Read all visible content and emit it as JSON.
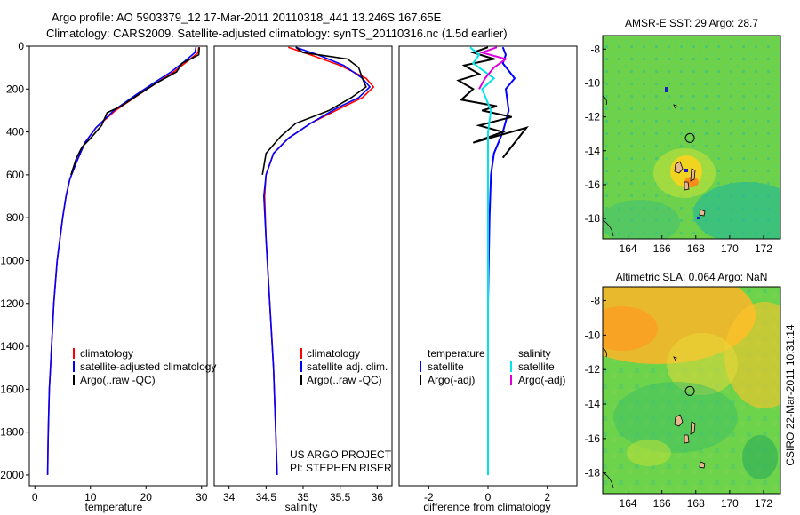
{
  "title": {
    "line1": "Argo profile: AO 5903379_12 17-Mar-2011 20110318_441 13.246S 167.65E",
    "line2": "Climatology: CARS2009. Satellite-adjusted climatology: synTS_20110316.nc (1.5d earlier)"
  },
  "side_label": "CSIRO 22-Mar-2011 10:31:14",
  "colors": {
    "climatology": "#ff0000",
    "satellite": "#0000ff",
    "argo": "#000000",
    "sal_satellite": "#00e5e5",
    "sal_argo": "#dd00dd"
  },
  "chart_data": [
    {
      "type": "line",
      "id": "temperature",
      "xlabel": "temperature",
      "xlim": [
        -1,
        31
      ],
      "ylim": [
        2050,
        0
      ],
      "xticks": [
        0,
        10,
        20,
        30
      ],
      "yticks": [
        0,
        200,
        400,
        600,
        800,
        1000,
        1200,
        1400,
        1600,
        1800,
        2000
      ],
      "legend": [
        "climatology",
        "satellite-adjusted climatology",
        "Argo(..raw -QC)"
      ],
      "series": [
        {
          "name": "climatology",
          "color": "#ff0000",
          "points": [
            [
              29.5,
              5
            ],
            [
              29.4,
              30
            ],
            [
              27.5,
              70
            ],
            [
              25,
              120
            ],
            [
              22,
              170
            ],
            [
              18.5,
              230
            ],
            [
              14.5,
              300
            ],
            [
              11,
              380
            ],
            [
              9,
              450
            ],
            [
              7.5,
              540
            ],
            [
              6.3,
              620
            ],
            [
              5.6,
              700
            ],
            [
              5,
              800
            ],
            [
              4.5,
              900
            ],
            [
              4,
              1000
            ],
            [
              3.7,
              1100
            ],
            [
              3.4,
              1200
            ],
            [
              3.2,
              1300
            ],
            [
              3,
              1400
            ],
            [
              2.8,
              1500
            ],
            [
              2.6,
              1600
            ],
            [
              2.5,
              1700
            ],
            [
              2.4,
              1800
            ],
            [
              2.35,
              1900
            ],
            [
              2.3,
              2000
            ]
          ]
        },
        {
          "name": "satellite-adjusted climatology",
          "color": "#0000ff",
          "points": [
            [
              29,
              5
            ],
            [
              28.8,
              30
            ],
            [
              27,
              70
            ],
            [
              24.5,
              120
            ],
            [
              21.5,
              170
            ],
            [
              18,
              230
            ],
            [
              14.2,
              300
            ],
            [
              11,
              380
            ],
            [
              9,
              450
            ],
            [
              7.5,
              540
            ],
            [
              6.3,
              620
            ],
            [
              5.6,
              700
            ],
            [
              5,
              800
            ],
            [
              4.5,
              900
            ],
            [
              4,
              1000
            ],
            [
              3.7,
              1100
            ],
            [
              3.4,
              1200
            ],
            [
              3.2,
              1300
            ],
            [
              3,
              1400
            ],
            [
              2.8,
              1500
            ],
            [
              2.6,
              1600
            ],
            [
              2.5,
              1700
            ],
            [
              2.4,
              1800
            ],
            [
              2.35,
              1900
            ],
            [
              2.3,
              2000
            ]
          ]
        },
        {
          "name": "Argo(..raw -QC)",
          "color": "#000000",
          "points": [
            [
              29.6,
              5
            ],
            [
              29.5,
              40
            ],
            [
              26.5,
              80
            ],
            [
              25.5,
              120
            ],
            [
              22,
              170
            ],
            [
              19,
              220
            ],
            [
              15.5,
              280
            ],
            [
              13,
              310
            ],
            [
              12,
              370
            ],
            [
              10,
              430
            ],
            [
              8.5,
              470
            ],
            [
              7.5,
              520
            ],
            [
              6.5,
              600
            ]
          ]
        }
      ]
    },
    {
      "type": "line",
      "id": "salinity",
      "xlabel": "salinity",
      "xlim": [
        33.8,
        36.2
      ],
      "ylim": [
        2050,
        0
      ],
      "xticks": [
        34,
        34.5,
        35,
        35.5,
        36
      ],
      "legend": [
        "climatology",
        "satellite adj. clim.",
        "Argo(..raw -QC)"
      ],
      "annotation": [
        "US ARGO PROJECT",
        "PI: STEPHEN RISER"
      ],
      "series": [
        {
          "name": "climatology",
          "color": "#ff0000",
          "points": [
            [
              34.8,
              5
            ],
            [
              35.1,
              40
            ],
            [
              35.5,
              90
            ],
            [
              35.85,
              150
            ],
            [
              35.95,
              190
            ],
            [
              35.8,
              240
            ],
            [
              35.5,
              290
            ],
            [
              35.1,
              360
            ],
            [
              34.8,
              430
            ],
            [
              34.6,
              500
            ],
            [
              34.5,
              600
            ],
            [
              34.48,
              700
            ],
            [
              34.5,
              900
            ],
            [
              34.55,
              1200
            ],
            [
              34.6,
              1500
            ],
            [
              34.63,
              1800
            ],
            [
              34.65,
              2000
            ]
          ]
        },
        {
          "name": "satellite adj. clim.",
          "color": "#0000ff",
          "points": [
            [
              34.9,
              5
            ],
            [
              35.2,
              40
            ],
            [
              35.55,
              90
            ],
            [
              35.8,
              150
            ],
            [
              35.9,
              190
            ],
            [
              35.75,
              240
            ],
            [
              35.45,
              290
            ],
            [
              35.1,
              360
            ],
            [
              34.8,
              430
            ],
            [
              34.6,
              500
            ],
            [
              34.5,
              600
            ],
            [
              34.47,
              700
            ],
            [
              34.5,
              900
            ],
            [
              34.55,
              1200
            ],
            [
              34.6,
              1500
            ],
            [
              34.63,
              1800
            ],
            [
              34.65,
              2000
            ]
          ]
        },
        {
          "name": "Argo(..raw -QC)",
          "color": "#000000",
          "points": [
            [
              34.9,
              5
            ],
            [
              35,
              30
            ],
            [
              35.6,
              60
            ],
            [
              35.75,
              100
            ],
            [
              35.8,
              150
            ],
            [
              35.85,
              190
            ],
            [
              35.65,
              240
            ],
            [
              35.35,
              300
            ],
            [
              34.9,
              360
            ],
            [
              34.7,
              420
            ],
            [
              34.5,
              500
            ],
            [
              34.45,
              600
            ]
          ]
        }
      ]
    },
    {
      "type": "line",
      "id": "difference",
      "xlabel": "difference from climatology",
      "xlim": [
        -3,
        3
      ],
      "ylim": [
        2050,
        0
      ],
      "xticks": [
        -2,
        0,
        2
      ],
      "legend_headers": [
        "temperature",
        "salinity"
      ],
      "legend": [
        "satellite",
        "Argo(-adj)",
        "satellite",
        "Argo(-adj)"
      ],
      "series": [
        {
          "name": "temperature satellite",
          "color": "#0000ff",
          "points": [
            [
              0.5,
              5
            ],
            [
              0.6,
              40
            ],
            [
              0.5,
              80
            ],
            [
              0.9,
              150
            ],
            [
              0.6,
              200
            ],
            [
              0.7,
              300
            ],
            [
              0.5,
              400
            ],
            [
              0.2,
              500
            ],
            [
              0.1,
              600
            ],
            [
              0.05,
              800
            ],
            [
              0,
              1200
            ],
            [
              0,
              1600
            ],
            [
              0,
              2000
            ]
          ]
        },
        {
          "name": "temperature Argo(-adj)",
          "color": "#000000",
          "points": [
            [
              0,
              5
            ],
            [
              -0.5,
              30
            ],
            [
              0.2,
              60
            ],
            [
              -0.8,
              90
            ],
            [
              -0.3,
              130
            ],
            [
              -1,
              160
            ],
            [
              -0.5,
              200
            ],
            [
              -0.9,
              250
            ],
            [
              0.3,
              280
            ],
            [
              -0.2,
              300
            ],
            [
              0.8,
              330
            ],
            [
              -0.3,
              370
            ],
            [
              0.5,
              400
            ],
            [
              -0.5,
              450
            ],
            [
              1.3,
              380
            ],
            [
              0.5,
              520
            ]
          ]
        },
        {
          "name": "salinity satellite",
          "color": "#00e5e5",
          "points": [
            [
              -0.6,
              5
            ],
            [
              -0.3,
              40
            ],
            [
              -0.5,
              80
            ],
            [
              0.2,
              150
            ],
            [
              -0.2,
              200
            ],
            [
              0.1,
              300
            ],
            [
              0,
              400
            ],
            [
              0,
              600
            ],
            [
              0,
              800
            ],
            [
              0,
              1200
            ],
            [
              0,
              1600
            ],
            [
              0,
              2000
            ]
          ]
        },
        {
          "name": "salinity Argo(-adj)",
          "color": "#dd00dd",
          "points": [
            [
              0.3,
              5
            ],
            [
              -0.2,
              30
            ],
            [
              0.6,
              60
            ],
            [
              0.2,
              100
            ],
            [
              -0.1,
              150
            ],
            [
              -0.3,
              200
            ]
          ]
        }
      ]
    },
    {
      "type": "heatmap",
      "id": "sst-map",
      "title": "AMSR-E SST: 29 Argo: 28.7",
      "xlim": [
        162.5,
        173
      ],
      "ylim": [
        -19.2,
        -7.2
      ],
      "xticks": [
        164,
        166,
        168,
        170,
        172
      ],
      "yticks": [
        -8,
        -10,
        -12,
        -14,
        -16,
        -18
      ],
      "marker": [
        167.65,
        -13.246
      ]
    },
    {
      "type": "heatmap",
      "id": "sla-map",
      "title": "Altimetric SLA: 0.064 Argo: NaN",
      "xlim": [
        162.5,
        173
      ],
      "ylim": [
        -19.2,
        -7.2
      ],
      "xticks": [
        164,
        166,
        168,
        170,
        172
      ],
      "yticks": [
        -8,
        -10,
        -12,
        -14,
        -16,
        -18
      ],
      "marker": [
        167.65,
        -13.246
      ]
    }
  ]
}
